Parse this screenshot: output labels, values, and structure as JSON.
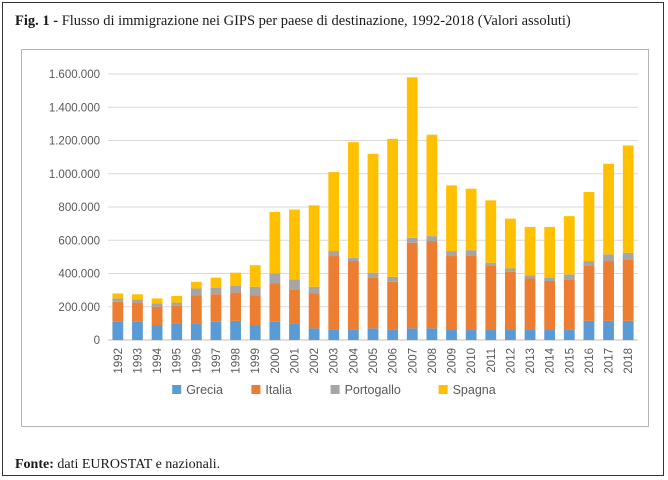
{
  "figure": {
    "label": "Fig. 1 - ",
    "title": "Flusso di immigrazione nei GIPS per paese di destinazione, 1992-2018 (Valori assoluti)",
    "source_label": "Fonte:",
    "source_text": " dati EUROSTAT e nazionali."
  },
  "chart_data": {
    "type": "bar",
    "stacked": true,
    "title": "",
    "xlabel": "",
    "ylabel": "",
    "ylim": [
      0,
      1600000
    ],
    "yticks": [
      0,
      200000,
      400000,
      600000,
      800000,
      1000000,
      1200000,
      1400000,
      1600000
    ],
    "ytick_labels": [
      "0",
      "200.000",
      "400.000",
      "600.000",
      "800.000",
      "1.000.000",
      "1.200.000",
      "1.400.000",
      "1.600.000"
    ],
    "grid": true,
    "legend_position": "bottom",
    "categories": [
      "1992",
      "1993",
      "1994",
      "1995",
      "1996",
      "1997",
      "1998",
      "1999",
      "2000",
      "2001",
      "2002",
      "2003",
      "2004",
      "2005",
      "2006",
      "2007",
      "2008",
      "2009",
      "2010",
      "2011",
      "2012",
      "2013",
      "2014",
      "2015",
      "2016",
      "2017",
      "2018"
    ],
    "series": [
      {
        "name": "Grecia",
        "color": "#5b9bd5",
        "values": [
          110000,
          110000,
          90000,
          100000,
          100000,
          110000,
          115000,
          90000,
          110000,
          100000,
          70000,
          65000,
          65000,
          70000,
          65000,
          70000,
          70000,
          60000,
          60000,
          60000,
          60000,
          60000,
          60000,
          65000,
          115000,
          115000,
          115000
        ]
      },
      {
        "name": "Italia",
        "color": "#ed7d31",
        "values": [
          120000,
          115000,
          110000,
          105000,
          170000,
          165000,
          170000,
          180000,
          230000,
          205000,
          210000,
          440000,
          410000,
          305000,
          285000,
          515000,
          525000,
          445000,
          450000,
          385000,
          350000,
          310000,
          295000,
          300000,
          330000,
          360000,
          370000
        ]
      },
      {
        "name": "Portogallo",
        "color": "#a5a5a5",
        "values": [
          20000,
          20000,
          20000,
          20000,
          40000,
          40000,
          40000,
          50000,
          60000,
          60000,
          40000,
          30000,
          20000,
          30000,
          30000,
          30000,
          30000,
          30000,
          30000,
          20000,
          20000,
          20000,
          20000,
          30000,
          30000,
          40000,
          40000
        ]
      },
      {
        "name": "Spagna",
        "color": "#ffc000",
        "values": [
          30000,
          30000,
          30000,
          40000,
          40000,
          60000,
          80000,
          130000,
          370000,
          420000,
          490000,
          475000,
          695000,
          715000,
          830000,
          965000,
          610000,
          395000,
          370000,
          375000,
          300000,
          290000,
          305000,
          350000,
          415000,
          545000,
          645000
        ]
      }
    ]
  }
}
